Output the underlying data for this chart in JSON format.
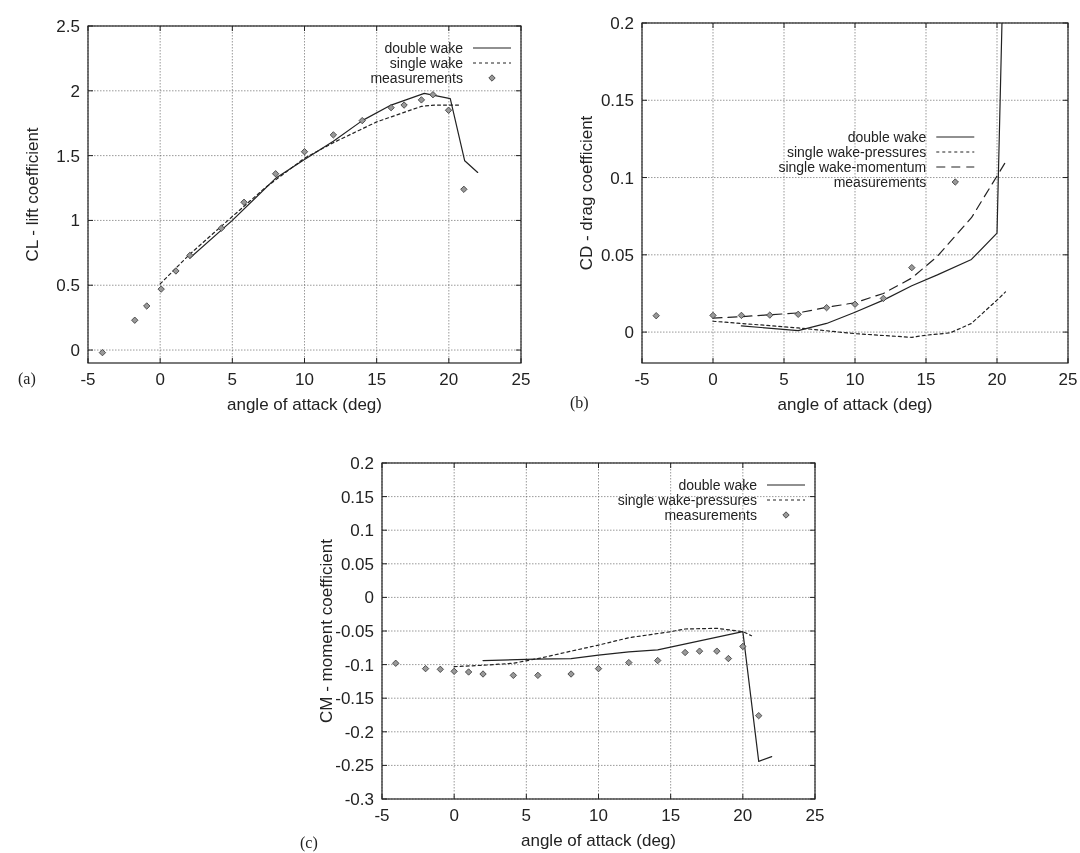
{
  "chart_data": [
    {
      "type": "line",
      "xlabel": "angle of attack (deg)",
      "ylabel": "CL - lift coefficient",
      "annotations": [
        "(a)"
      ],
      "xlim": [
        -5,
        25
      ],
      "ylim": [
        -0.1,
        2.5
      ],
      "xticks": [
        -5,
        0,
        5,
        10,
        15,
        20,
        25
      ],
      "yticks": [
        0,
        0.5,
        1,
        1.5,
        2,
        2.5
      ],
      "grid": true,
      "legend": "top right",
      "series": [
        {
          "name": "double wake",
          "type": "line",
          "color": "#222222",
          "line_style": "solid",
          "x": [
            2.06,
            5,
            8.05,
            10,
            12,
            14,
            16,
            18.3,
            20.1,
            21.1,
            22
          ],
          "values": [
            0.71,
            1.0,
            1.33,
            1.47,
            1.61,
            1.77,
            1.89,
            1.98,
            1.94,
            1.46,
            1.37
          ]
        },
        {
          "name": "single wake",
          "type": "line",
          "color": "#222222",
          "line_style": "dotted",
          "x": [
            0,
            2.06,
            5,
            7.25,
            10,
            12,
            15,
            18.1,
            19,
            20.7
          ],
          "values": [
            0.51,
            0.74,
            1.03,
            1.25,
            1.48,
            1.6,
            1.76,
            1.88,
            1.89,
            1.89
          ]
        },
        {
          "name": "measurements",
          "type": "scatter",
          "color": "#999999",
          "marker": "diamond",
          "x": [
            -4,
            -1.76,
            -0.93,
            0.07,
            1.09,
            2.06,
            4.24,
            5.81,
            8,
            10,
            12,
            14,
            16,
            16.9,
            18.1,
            18.9,
            19.98,
            21.04
          ],
          "values": [
            -0.02,
            0.23,
            0.34,
            0.47,
            0.61,
            0.73,
            0.94,
            1.14,
            1.36,
            1.53,
            1.66,
            1.77,
            1.87,
            1.89,
            1.93,
            1.97,
            1.85,
            1.24
          ]
        }
      ]
    },
    {
      "type": "line",
      "xlabel": "angle of attack (deg)",
      "ylabel": "CD - drag coefficient",
      "annotations": [
        "(b)"
      ],
      "xlim": [
        -5,
        25
      ],
      "ylim": [
        -0.02,
        0.2
      ],
      "xticks": [
        -5,
        0,
        5,
        10,
        15,
        20,
        25
      ],
      "yticks": [
        0,
        0.05,
        0.1,
        0.15,
        0.2
      ],
      "grid": true,
      "legend": "right",
      "series": [
        {
          "name": "double wake",
          "type": "line",
          "color": "#222222",
          "line_style": "solid",
          "x": [
            2,
            6,
            8,
            10,
            12,
            14,
            15.8,
            18.2,
            20,
            20.35
          ],
          "values": [
            0.004,
            0.001,
            0.0056,
            0.0128,
            0.0207,
            0.03,
            0.037,
            0.047,
            0.064,
            0.2
          ]
        },
        {
          "name": "single wake-pressures",
          "type": "line",
          "color": "#222222",
          "line_style": "dotted",
          "x": [
            0,
            2,
            6,
            10,
            14,
            15,
            16.7,
            18.2,
            20,
            20.6
          ],
          "values": [
            0.007,
            0.0056,
            0.0027,
            -0.001,
            -0.0034,
            -0.002,
            -0.0005,
            0.0056,
            0.0207,
            0.026
          ]
        },
        {
          "name": "single wake-momentum",
          "type": "line",
          "color": "#222222",
          "line_style": "dashed",
          "x": [
            0,
            2,
            6,
            8,
            10,
            12,
            14,
            15.8,
            18.2,
            20,
            20.6
          ],
          "values": [
            0.009,
            0.01,
            0.0124,
            0.016,
            0.019,
            0.025,
            0.035,
            0.049,
            0.074,
            0.101,
            0.11
          ]
        },
        {
          "name": "measurements",
          "type": "scatter",
          "color": "#999999",
          "marker": "diamond",
          "x": [
            -4,
            0,
            2,
            4,
            6,
            8,
            10,
            12,
            14
          ],
          "values": [
            0.0106,
            0.0108,
            0.0108,
            0.011,
            0.0115,
            0.0158,
            0.018,
            0.0218,
            0.0417
          ]
        }
      ]
    },
    {
      "type": "line",
      "xlabel": "angle of attack (deg)",
      "ylabel": "CM - moment coefficient",
      "annotations": [
        "(c)"
      ],
      "xlim": [
        -5,
        25
      ],
      "ylim": [
        -0.3,
        0.2
      ],
      "xticks": [
        -5,
        0,
        5,
        10,
        15,
        20,
        25
      ],
      "yticks": [
        -0.3,
        -0.25,
        -0.2,
        -0.15,
        -0.1,
        -0.05,
        0,
        0.05,
        0.1,
        0.15,
        0.2
      ],
      "grid": true,
      "legend": "top right",
      "series": [
        {
          "name": "double wake",
          "type": "line",
          "color": "#222222",
          "line_style": "solid",
          "x": [
            2,
            5.6,
            8.1,
            10,
            12.1,
            14.1,
            20,
            21.1,
            22
          ],
          "values": [
            -0.094,
            -0.092,
            -0.091,
            -0.086,
            -0.081,
            -0.078,
            -0.051,
            -0.244,
            -0.237
          ]
        },
        {
          "name": "single wake-pressures",
          "type": "line",
          "color": "#222222",
          "line_style": "dotted",
          "x": [
            0,
            2,
            4.1,
            6.05,
            8.1,
            10,
            12.1,
            15,
            16,
            18.2,
            20,
            20.6
          ],
          "values": [
            -0.103,
            -0.101,
            -0.098,
            -0.09,
            -0.08,
            -0.071,
            -0.06,
            -0.051,
            -0.047,
            -0.046,
            -0.051,
            -0.057
          ]
        },
        {
          "name": "measurements",
          "type": "scatter",
          "color": "#999999",
          "marker": "diamond",
          "x": [
            -4.05,
            -1.98,
            -0.96,
            0,
            1,
            2,
            4.1,
            5.8,
            8.1,
            10,
            12.1,
            14.1,
            16,
            17,
            18.2,
            19,
            20,
            21.1
          ],
          "values": [
            -0.098,
            -0.106,
            -0.107,
            -0.11,
            -0.111,
            -0.114,
            -0.116,
            -0.116,
            -0.114,
            -0.106,
            -0.097,
            -0.094,
            -0.082,
            -0.08,
            -0.08,
            -0.091,
            -0.073,
            -0.176
          ]
        }
      ]
    }
  ]
}
